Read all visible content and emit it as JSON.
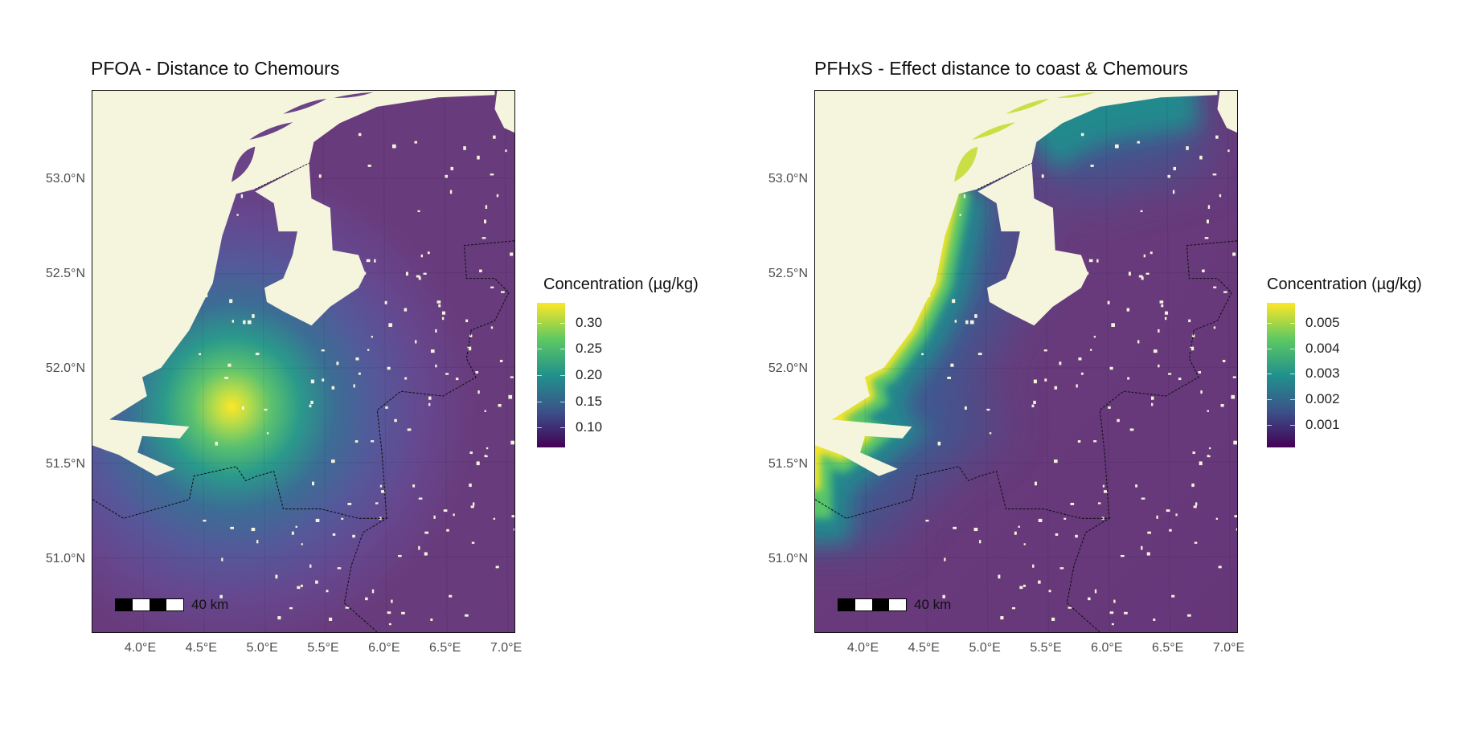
{
  "maps": [
    {
      "id": "pfoa",
      "title": "PFOA - Distance to Chemours",
      "legend_title": "Concentration (µg/kg)",
      "legend_ticks": [
        "0.30",
        "0.25",
        "0.20",
        "0.15",
        "0.10"
      ],
      "legend_tick_values": [
        0.3,
        0.25,
        0.2,
        0.15,
        0.1
      ],
      "legend_range": [
        0.062,
        0.338
      ],
      "pattern": "radial hotspot around Chemours (4.75°E, 51.8°N)",
      "scalebar_label": "40 km"
    },
    {
      "id": "pfhxs",
      "title": "PFHxS - Effect distance to coast & Chemours",
      "legend_title": "Concentration (µg/kg)",
      "legend_ticks": [
        "0.005",
        "0.004",
        "0.003",
        "0.002",
        "0.001"
      ],
      "legend_tick_values": [
        0.005,
        0.004,
        0.003,
        0.002,
        0.001
      ],
      "legend_range": [
        0.0001,
        0.0058
      ],
      "pattern": "high along North Sea coast, decreasing inland",
      "scalebar_label": "40 km"
    }
  ],
  "axes": {
    "lat_labels": [
      "53.0°N",
      "52.5°N",
      "52.0°N",
      "51.5°N",
      "51.0°N"
    ],
    "lat_values": [
      53.0,
      52.5,
      52.0,
      51.5,
      51.0
    ],
    "lon_labels": [
      "4.0°E",
      "4.5°E",
      "5.0°E",
      "5.5°E",
      "6.0°E",
      "6.5°E",
      "7.0°E"
    ],
    "lon_values": [
      4.0,
      4.5,
      5.0,
      5.5,
      6.0,
      6.5,
      7.0
    ],
    "lon_range": [
      3.6,
      7.075
    ],
    "lat_range": [
      50.61,
      53.47
    ]
  },
  "colors": {
    "sea": "#f5f4dc",
    "land_low": "#683b7c",
    "viridis": [
      "#fde725",
      "#a0da39",
      "#4ac16d",
      "#1fa187",
      "#277f8e",
      "#365c8d",
      "#46337e",
      "#440154"
    ]
  }
}
